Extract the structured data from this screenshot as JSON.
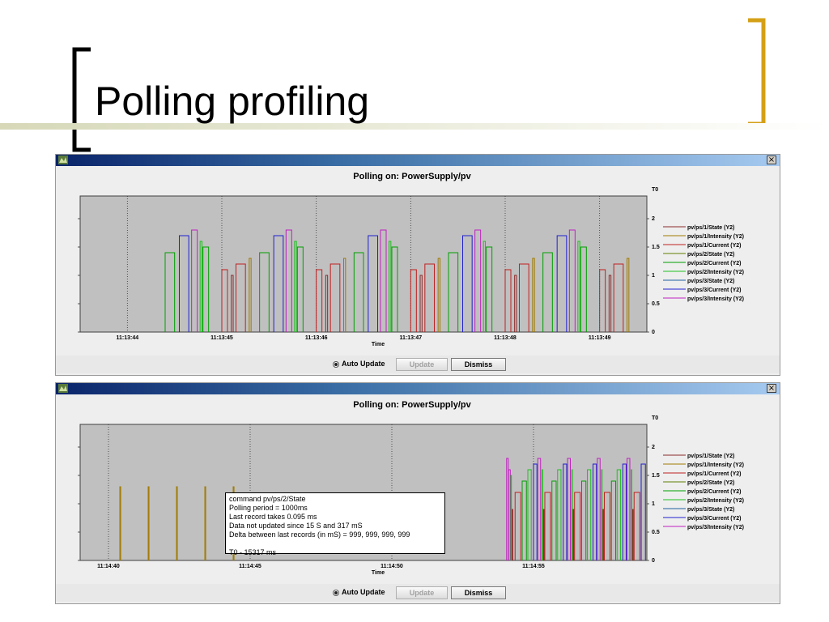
{
  "slide": {
    "title": "Polling profiling",
    "colors": {
      "bracket_left": "#000000",
      "bracket_right": "#d4a017",
      "accent_bar": "#d6d8b8"
    }
  },
  "windows": [
    {
      "chart_title": "Polling on:  PowerSupply/pv",
      "y2_axis_top_label": "T0",
      "x_axis_label": "Time",
      "auto_update_label": "Auto Update",
      "update_label": "Update",
      "dismiss_label": "Dismiss"
    },
    {
      "chart_title": "Polling on:  PowerSupply/pv",
      "y2_axis_top_label": "T0",
      "x_axis_label": "Time",
      "auto_update_label": "Auto Update",
      "update_label": "Update",
      "dismiss_label": "Dismiss",
      "tooltip": {
        "lines": [
          "command  pv/ps/2/State",
          "Polling period = 1000ms",
          "Last record takes 0.095 ms",
          "Data not updated since 15 S and 317 mS",
          "Delta between last records (in mS) = 999, 999, 999, 999",
          "",
          "T0 - 15317 ms"
        ]
      }
    }
  ],
  "chart_data": [
    {
      "type": "bar",
      "title": "Polling on:  PowerSupply/pv",
      "xlabel": "Time",
      "ylabel": "",
      "y2_label": "T0",
      "ylim": [
        0,
        2.4
      ],
      "y_ticks": [
        0,
        0.5,
        1,
        1.5,
        2
      ],
      "y_tick_labels": [
        "",
        "",
        "",
        "",
        ""
      ],
      "y2_ticks": [
        0,
        0.5,
        1,
        1.5,
        2
      ],
      "y2_tick_labels": [
        "0",
        "0.5",
        "1",
        "1.5",
        "2"
      ],
      "x_range": [
        0,
        6
      ],
      "x_ticks": [
        0.5,
        1.5,
        2.5,
        3.5,
        4.5,
        5.5
      ],
      "x_tick_labels": [
        "11:13:44",
        "11:13:45",
        "11:13:46",
        "11:13:47",
        "11:13:48",
        "11:13:49"
      ],
      "legend_position": "right",
      "series": [
        {
          "name": "pv/ps/1/State (Y2)",
          "color": "#8b2a2a"
        },
        {
          "name": "pv/ps/1/Intensity (Y2)",
          "color": "#a07a00"
        },
        {
          "name": "pv/ps/1/Current (Y2)",
          "color": "#c02020"
        },
        {
          "name": "pv/ps/2/State (Y2)",
          "color": "#608000"
        },
        {
          "name": "pv/ps/2/Current (Y2)",
          "color": "#00a000"
        },
        {
          "name": "pv/ps/2/Intensity (Y2)",
          "color": "#20c020"
        },
        {
          "name": "pv/ps/3/State (Y2)",
          "color": "#2060a0"
        },
        {
          "name": "pv/ps/3/Current (Y2)",
          "color": "#2020d0"
        },
        {
          "name": "pv/ps/3/Intensity (Y2)",
          "color": "#c020c0"
        }
      ],
      "bars": [
        {
          "x": 0.9,
          "w": 0.1,
          "y": 1.4,
          "series": 4
        },
        {
          "x": 1.05,
          "w": 0.1,
          "y": 1.7,
          "series": 7
        },
        {
          "x": 1.18,
          "w": 0.06,
          "y": 1.8,
          "series": 8
        },
        {
          "x": 1.27,
          "w": 0.02,
          "y": 1.6,
          "series": 5
        },
        {
          "x": 1.3,
          "w": 0.06,
          "y": 1.5,
          "series": 4
        },
        {
          "x": 1.5,
          "w": 0.06,
          "y": 1.1,
          "series": 2
        },
        {
          "x": 1.6,
          "w": 0.02,
          "y": 1.0,
          "series": 0
        },
        {
          "x": 1.65,
          "w": 0.1,
          "y": 1.2,
          "series": 2
        },
        {
          "x": 1.79,
          "w": 0.02,
          "y": 1.3,
          "series": 1
        },
        {
          "x": 1.9,
          "w": 0.1,
          "y": 1.4,
          "series": 4
        },
        {
          "x": 2.05,
          "w": 0.1,
          "y": 1.7,
          "series": 7
        },
        {
          "x": 2.18,
          "w": 0.06,
          "y": 1.8,
          "series": 8
        },
        {
          "x": 2.27,
          "w": 0.02,
          "y": 1.6,
          "series": 5
        },
        {
          "x": 2.3,
          "w": 0.06,
          "y": 1.5,
          "series": 4
        },
        {
          "x": 2.5,
          "w": 0.06,
          "y": 1.1,
          "series": 2
        },
        {
          "x": 2.6,
          "w": 0.02,
          "y": 1.0,
          "series": 0
        },
        {
          "x": 2.65,
          "w": 0.1,
          "y": 1.2,
          "series": 2
        },
        {
          "x": 2.79,
          "w": 0.02,
          "y": 1.3,
          "series": 1
        },
        {
          "x": 2.9,
          "w": 0.1,
          "y": 1.4,
          "series": 4
        },
        {
          "x": 3.05,
          "w": 0.1,
          "y": 1.7,
          "series": 7
        },
        {
          "x": 3.18,
          "w": 0.06,
          "y": 1.8,
          "series": 8
        },
        {
          "x": 3.27,
          "w": 0.02,
          "y": 1.6,
          "series": 5
        },
        {
          "x": 3.3,
          "w": 0.06,
          "y": 1.5,
          "series": 4
        },
        {
          "x": 3.5,
          "w": 0.06,
          "y": 1.1,
          "series": 2
        },
        {
          "x": 3.6,
          "w": 0.02,
          "y": 1.0,
          "series": 0
        },
        {
          "x": 3.65,
          "w": 0.1,
          "y": 1.2,
          "series": 2
        },
        {
          "x": 3.79,
          "w": 0.02,
          "y": 1.3,
          "series": 1
        },
        {
          "x": 3.9,
          "w": 0.1,
          "y": 1.4,
          "series": 4
        },
        {
          "x": 4.05,
          "w": 0.1,
          "y": 1.7,
          "series": 7
        },
        {
          "x": 4.18,
          "w": 0.06,
          "y": 1.8,
          "series": 8
        },
        {
          "x": 4.27,
          "w": 0.02,
          "y": 1.6,
          "series": 5
        },
        {
          "x": 4.3,
          "w": 0.06,
          "y": 1.5,
          "series": 4
        },
        {
          "x": 4.5,
          "w": 0.06,
          "y": 1.1,
          "series": 2
        },
        {
          "x": 4.6,
          "w": 0.02,
          "y": 1.0,
          "series": 0
        },
        {
          "x": 4.65,
          "w": 0.1,
          "y": 1.2,
          "series": 2
        },
        {
          "x": 4.79,
          "w": 0.02,
          "y": 1.3,
          "series": 1
        },
        {
          "x": 4.9,
          "w": 0.1,
          "y": 1.4,
          "series": 4
        },
        {
          "x": 5.05,
          "w": 0.1,
          "y": 1.7,
          "series": 7
        },
        {
          "x": 5.18,
          "w": 0.06,
          "y": 1.8,
          "series": 8
        },
        {
          "x": 5.27,
          "w": 0.02,
          "y": 1.6,
          "series": 5
        },
        {
          "x": 5.3,
          "w": 0.06,
          "y": 1.5,
          "series": 4
        },
        {
          "x": 5.5,
          "w": 0.06,
          "y": 1.1,
          "series": 2
        },
        {
          "x": 5.6,
          "w": 0.02,
          "y": 1.0,
          "series": 0
        },
        {
          "x": 5.65,
          "w": 0.1,
          "y": 1.2,
          "series": 2
        },
        {
          "x": 5.79,
          "w": 0.02,
          "y": 1.3,
          "series": 1
        }
      ]
    },
    {
      "type": "bar",
      "title": "Polling on:  PowerSupply/pv",
      "xlabel": "Time",
      "ylabel": "",
      "y2_label": "T0",
      "ylim": [
        0,
        2.4
      ],
      "y_ticks": [
        0,
        0.5,
        1,
        1.5,
        2
      ],
      "y_tick_labels": [
        "",
        "",
        "",
        "",
        ""
      ],
      "y2_ticks": [
        0,
        0.5,
        1,
        1.5,
        2
      ],
      "y2_tick_labels": [
        "0",
        "0.5",
        "1",
        "1.5",
        "2"
      ],
      "x_range": [
        0,
        20
      ],
      "x_ticks": [
        1,
        6,
        11,
        16
      ],
      "x_tick_labels": [
        "11:14:40",
        "11:14:45",
        "11:14:50",
        "11:14:55"
      ],
      "legend_position": "right",
      "series": [
        {
          "name": "pv/ps/1/State (Y2)",
          "color": "#8b2a2a"
        },
        {
          "name": "pv/ps/1/Intensity (Y2)",
          "color": "#a07a00"
        },
        {
          "name": "pv/ps/1/Current (Y2)",
          "color": "#c02020"
        },
        {
          "name": "pv/ps/2/State (Y2)",
          "color": "#608000"
        },
        {
          "name": "pv/ps/2/Current (Y2)",
          "color": "#00a000"
        },
        {
          "name": "pv/ps/2/Intensity (Y2)",
          "color": "#20c020"
        },
        {
          "name": "pv/ps/3/State (Y2)",
          "color": "#2060a0"
        },
        {
          "name": "pv/ps/3/Current (Y2)",
          "color": "#2020d0"
        },
        {
          "name": "pv/ps/3/Intensity (Y2)",
          "color": "#c020c0"
        }
      ],
      "bars": [
        {
          "x": 1.4,
          "w": 0.03,
          "y": 1.3,
          "series": 1
        },
        {
          "x": 2.4,
          "w": 0.03,
          "y": 1.3,
          "series": 1
        },
        {
          "x": 3.4,
          "w": 0.03,
          "y": 1.3,
          "series": 1
        },
        {
          "x": 4.4,
          "w": 0.03,
          "y": 1.3,
          "series": 1
        },
        {
          "x": 5.4,
          "w": 0.03,
          "y": 1.3,
          "series": 1
        },
        {
          "x": 15.05,
          "w": 0.06,
          "y": 1.8,
          "series": 8
        },
        {
          "x": 15.12,
          "w": 0.06,
          "y": 1.6,
          "series": 8
        },
        {
          "x": 15.2,
          "w": 0.02,
          "y": 1.5,
          "series": 5
        },
        {
          "x": 15.25,
          "w": 0.02,
          "y": 0.9,
          "series": 0
        },
        {
          "x": 15.35,
          "w": 0.2,
          "y": 1.2,
          "series": 2
        },
        {
          "x": 15.6,
          "w": 0.15,
          "y": 1.4,
          "series": 4
        },
        {
          "x": 15.8,
          "w": 0.12,
          "y": 1.6,
          "series": 5
        },
        {
          "x": 16.0,
          "w": 0.12,
          "y": 1.7,
          "series": 7
        },
        {
          "x": 16.15,
          "w": 0.1,
          "y": 1.8,
          "series": 8
        },
        {
          "x": 16.3,
          "w": 0.02,
          "y": 1.6,
          "series": 5
        },
        {
          "x": 16.35,
          "w": 0.02,
          "y": 0.9,
          "series": 0
        },
        {
          "x": 16.4,
          "w": 0.2,
          "y": 1.2,
          "series": 2
        },
        {
          "x": 16.65,
          "w": 0.15,
          "y": 1.4,
          "series": 4
        },
        {
          "x": 16.85,
          "w": 0.12,
          "y": 1.6,
          "series": 5
        },
        {
          "x": 17.05,
          "w": 0.12,
          "y": 1.7,
          "series": 7
        },
        {
          "x": 17.2,
          "w": 0.1,
          "y": 1.8,
          "series": 8
        },
        {
          "x": 17.35,
          "w": 0.02,
          "y": 1.6,
          "series": 5
        },
        {
          "x": 17.4,
          "w": 0.02,
          "y": 0.9,
          "series": 0
        },
        {
          "x": 17.45,
          "w": 0.2,
          "y": 1.2,
          "series": 2
        },
        {
          "x": 17.7,
          "w": 0.15,
          "y": 1.4,
          "series": 4
        },
        {
          "x": 17.9,
          "w": 0.12,
          "y": 1.6,
          "series": 5
        },
        {
          "x": 18.1,
          "w": 0.12,
          "y": 1.7,
          "series": 7
        },
        {
          "x": 18.25,
          "w": 0.1,
          "y": 1.8,
          "series": 8
        },
        {
          "x": 18.4,
          "w": 0.02,
          "y": 1.6,
          "series": 5
        },
        {
          "x": 18.45,
          "w": 0.02,
          "y": 0.9,
          "series": 0
        },
        {
          "x": 18.5,
          "w": 0.2,
          "y": 1.2,
          "series": 2
        },
        {
          "x": 18.75,
          "w": 0.15,
          "y": 1.4,
          "series": 4
        },
        {
          "x": 18.95,
          "w": 0.12,
          "y": 1.6,
          "series": 5
        },
        {
          "x": 19.15,
          "w": 0.12,
          "y": 1.7,
          "series": 7
        },
        {
          "x": 19.3,
          "w": 0.1,
          "y": 1.8,
          "series": 8
        },
        {
          "x": 19.45,
          "w": 0.02,
          "y": 1.6,
          "series": 5
        },
        {
          "x": 19.5,
          "w": 0.02,
          "y": 0.9,
          "series": 0
        },
        {
          "x": 19.55,
          "w": 0.2,
          "y": 1.2,
          "series": 2
        },
        {
          "x": 19.8,
          "w": 0.15,
          "y": 1.7,
          "series": 7
        }
      ]
    }
  ]
}
